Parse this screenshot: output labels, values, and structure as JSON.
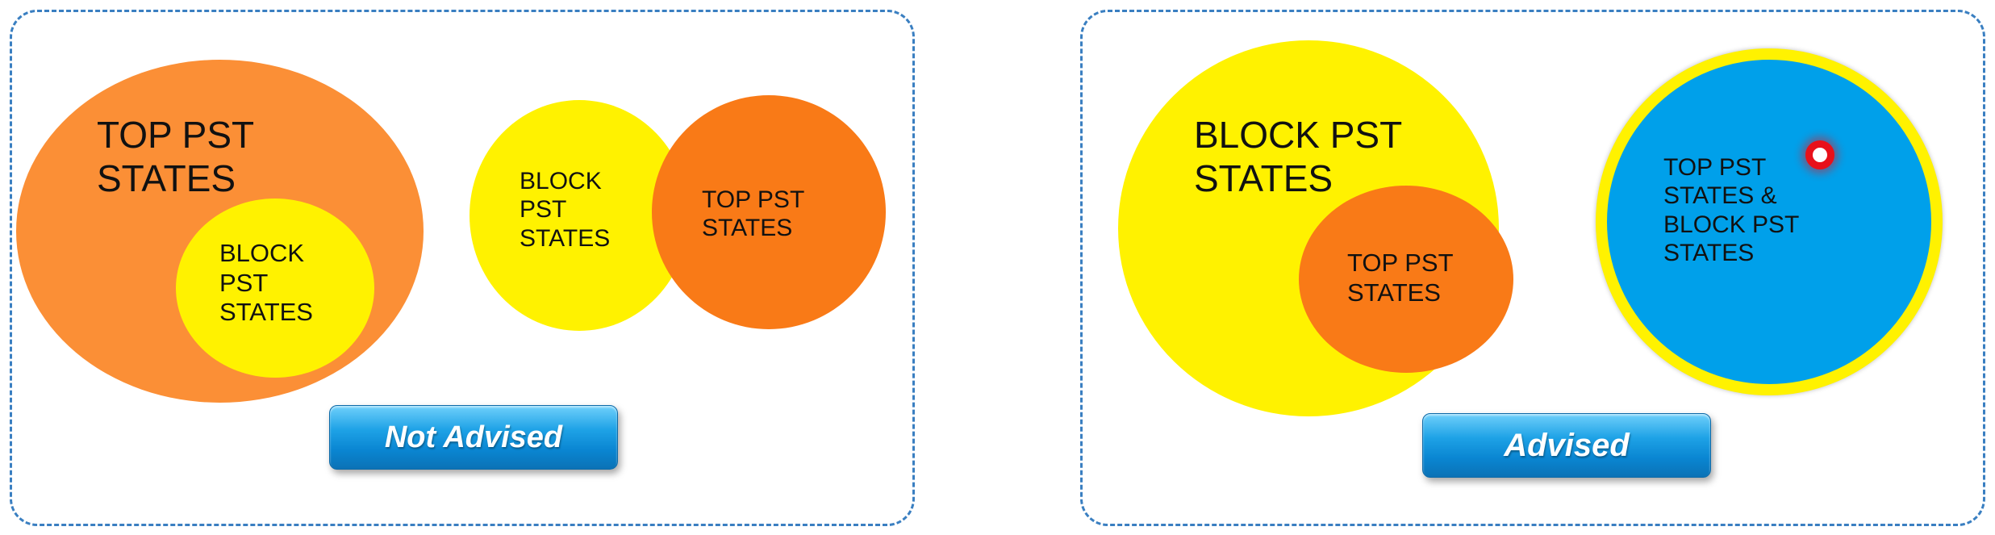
{
  "left_panel": {
    "outer_label": "TOP PST\nSTATES",
    "inner_label": "BLOCK\nPST\nSTATES",
    "overlap_left_label": "BLOCK\nPST\nSTATES",
    "overlap_right_label": "TOP PST\nSTATES",
    "button_label": "Not Advised"
  },
  "right_panel": {
    "outer_label": "BLOCK PST\nSTATES",
    "inner_label": "TOP PST\nSTATES",
    "combined_label": "TOP PST\nSTATES &\nBLOCK PST\nSTATES",
    "button_label": "Advised"
  },
  "colors": {
    "orange": "#fb8f36",
    "dark_orange": "#f97a17",
    "yellow": "#fff200",
    "blue": "#00a0ea",
    "border": "#3a7fc1",
    "pointer": "#e8101a"
  }
}
